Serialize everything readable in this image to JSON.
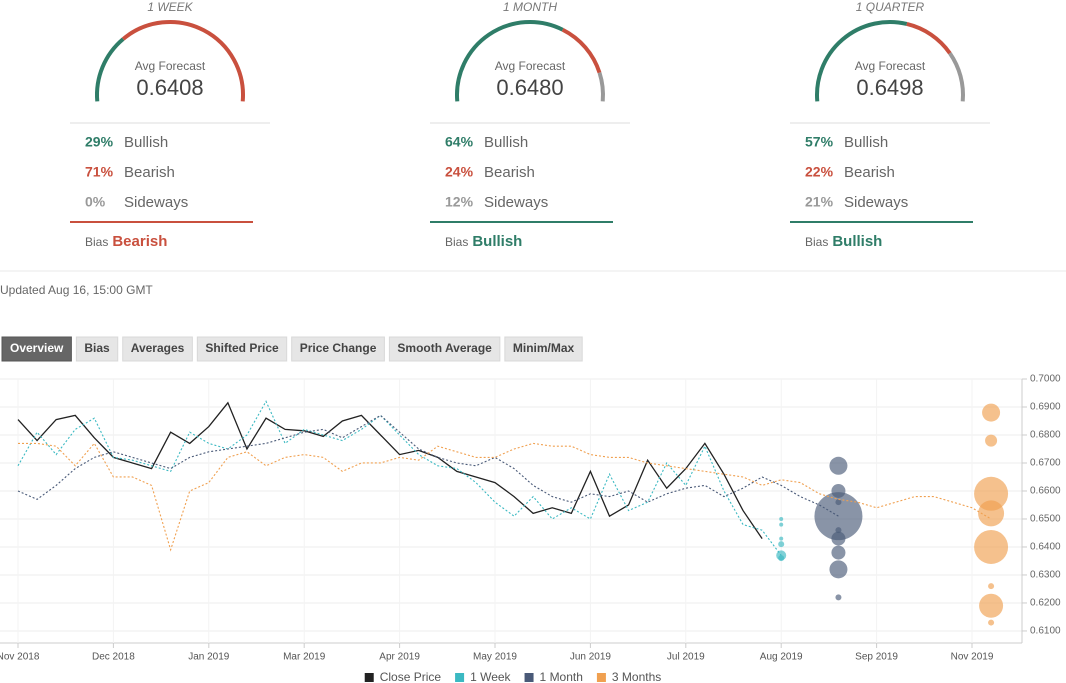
{
  "forecasts": [
    {
      "period": "1 WEEK",
      "avg_label": "Avg Forecast",
      "avg": "0.6408",
      "rows": [
        {
          "pct": {
            "value": 29,
            "label": "29%"
          },
          "name": "Bullish",
          "color": "#2f7d68"
        },
        {
          "pct": {
            "value": 71,
            "label": "71%"
          },
          "name": "Bearish",
          "color": "#c9503e"
        },
        {
          "pct": {
            "value": 0,
            "label": "0%"
          },
          "name": "Sideways",
          "color": "#999999"
        }
      ],
      "bias_label": "Bias",
      "bias": "Bearish",
      "bias_color": "#c9503e"
    },
    {
      "period": "1 MONTH",
      "avg_label": "Avg Forecast",
      "avg": "0.6480",
      "rows": [
        {
          "pct": {
            "value": 64,
            "label": "64%"
          },
          "name": "Bullish",
          "color": "#2f7d68"
        },
        {
          "pct": {
            "value": 24,
            "label": "24%"
          },
          "name": "Bearish",
          "color": "#c9503e"
        },
        {
          "pct": {
            "value": 12,
            "label": "12%"
          },
          "name": "Sideways",
          "color": "#999999"
        }
      ],
      "bias_label": "Bias",
      "bias": "Bullish",
      "bias_color": "#2f7d68"
    },
    {
      "period": "1 QUARTER",
      "avg_label": "Avg Forecast",
      "avg": "0.6498",
      "rows": [
        {
          "pct": {
            "value": 57,
            "label": "57%"
          },
          "name": "Bullish",
          "color": "#2f7d68"
        },
        {
          "pct": {
            "value": 22,
            "label": "22%"
          },
          "name": "Bearish",
          "color": "#c9503e"
        },
        {
          "pct": {
            "value": 21,
            "label": "21%"
          },
          "name": "Sideways",
          "color": "#999999"
        }
      ],
      "bias_label": "Bias",
      "bias": "Bullish",
      "bias_color": "#2f7d68"
    }
  ],
  "updated": "Updated Aug 16, 15:00 GMT",
  "tabs": [
    "Overview",
    "Bias",
    "Averages",
    "Shifted Price",
    "Price Change",
    "Smooth Average",
    "Minim/Max"
  ],
  "active_tab": 0,
  "chart_data": {
    "type": "line",
    "categories": [
      "Nov 2018",
      null,
      null,
      null,
      null,
      "Dec 2018",
      null,
      null,
      null,
      null,
      "Jan 2019",
      null,
      null,
      null,
      null,
      "Mar 2019",
      null,
      null,
      null,
      null,
      "Apr 2019",
      null,
      null,
      null,
      null,
      "May 2019",
      null,
      null,
      null,
      null,
      "Jun 2019",
      null,
      null,
      null,
      null,
      "Jul 2019",
      null,
      null,
      null,
      null,
      "Aug 2019",
      null,
      null,
      null,
      null,
      "Sep 2019",
      null,
      null,
      null,
      null,
      "Nov 2019",
      null,
      null
    ],
    "ylim": [
      0.6057,
      0.7
    ],
    "yticks": [
      {
        "value": 0.61,
        "label": "0.6100"
      },
      {
        "value": 0.62,
        "label": "0.6200"
      },
      {
        "value": 0.63,
        "label": "0.6300"
      },
      {
        "value": 0.64,
        "label": "0.6400"
      },
      {
        "value": 0.65,
        "label": "0.6500"
      },
      {
        "value": 0.66,
        "label": "0.6600"
      },
      {
        "value": 0.67,
        "label": "0.6700"
      },
      {
        "value": 0.68,
        "label": "0.6800"
      },
      {
        "value": 0.69,
        "label": "0.6900"
      },
      {
        "value": 0.7,
        "label": "0.7000"
      }
    ],
    "grid": true,
    "legend": "bottom",
    "series": [
      {
        "name": "Close Price",
        "color": "#222222",
        "style": "solid",
        "values": [
          0.6855,
          0.678,
          0.6855,
          0.687,
          0.679,
          0.672,
          0.67,
          0.668,
          0.681,
          0.677,
          0.683,
          0.6915,
          0.675,
          0.686,
          0.682,
          0.6815,
          0.6795,
          0.685,
          0.687,
          0.68,
          0.673,
          0.6745,
          0.672,
          0.667,
          0.665,
          0.663,
          0.658,
          0.652,
          0.654,
          0.652,
          0.667,
          0.651,
          0.655,
          0.671,
          0.661,
          0.668,
          0.677,
          0.666,
          0.653,
          0.643,
          null,
          null,
          null,
          null,
          null,
          null,
          null,
          null,
          null,
          null,
          null,
          null,
          null
        ]
      },
      {
        "name": "1 Week",
        "color": "#3bb9c2",
        "style": "dotted",
        "values": [
          0.669,
          0.681,
          0.673,
          0.682,
          0.686,
          0.672,
          0.671,
          0.669,
          0.667,
          0.681,
          0.677,
          0.675,
          0.68,
          0.692,
          0.677,
          0.682,
          0.68,
          0.678,
          0.682,
          0.687,
          0.68,
          0.673,
          0.669,
          0.668,
          0.663,
          0.656,
          0.651,
          0.658,
          0.65,
          0.654,
          0.65,
          0.666,
          0.653,
          0.656,
          0.67,
          0.662,
          0.676,
          0.66,
          0.648,
          0.646,
          0.637,
          null,
          null,
          null,
          null,
          null,
          null,
          null,
          null,
          null,
          null,
          null,
          null
        ],
        "forecast": [
          {
            "y": 0.65,
            "size": 2
          },
          {
            "y": 0.648,
            "size": 2
          },
          {
            "y": 0.643,
            "size": 2
          },
          {
            "y": 0.641,
            "size": 3
          },
          {
            "y": 0.637,
            "size": 5
          },
          {
            "y": 0.636,
            "size": 3
          }
        ]
      },
      {
        "name": "1 Month",
        "color": "#4a5a78",
        "style": "dotted",
        "values": [
          0.66,
          0.657,
          0.662,
          0.668,
          0.672,
          0.674,
          0.672,
          0.67,
          0.668,
          0.672,
          0.674,
          0.675,
          0.676,
          0.677,
          0.679,
          0.681,
          0.682,
          0.679,
          0.683,
          0.687,
          0.681,
          0.675,
          0.672,
          0.67,
          0.669,
          0.672,
          0.668,
          0.662,
          0.658,
          0.656,
          0.659,
          0.658,
          0.66,
          0.656,
          0.659,
          0.661,
          0.662,
          0.658,
          0.661,
          0.665,
          0.662,
          0.658,
          0.655,
          0.651,
          null,
          null,
          null,
          null,
          null,
          null,
          null,
          null,
          null
        ],
        "forecast": [
          {
            "y": 0.669,
            "size": 9
          },
          {
            "y": 0.66,
            "size": 7
          },
          {
            "y": 0.656,
            "size": 3
          },
          {
            "y": 0.651,
            "size": 24
          },
          {
            "y": 0.646,
            "size": 3
          },
          {
            "y": 0.643,
            "size": 7
          },
          {
            "y": 0.638,
            "size": 7
          },
          {
            "y": 0.632,
            "size": 9
          },
          {
            "y": 0.622,
            "size": 3
          }
        ]
      },
      {
        "name": "3 Months",
        "color": "#f0a050",
        "style": "dotted",
        "values": [
          0.677,
          0.677,
          0.676,
          0.669,
          0.677,
          0.665,
          0.665,
          0.662,
          0.639,
          0.66,
          0.663,
          0.672,
          0.674,
          0.669,
          0.672,
          0.673,
          0.672,
          0.667,
          0.67,
          0.67,
          0.672,
          0.671,
          0.676,
          0.674,
          0.672,
          0.672,
          0.675,
          0.677,
          0.676,
          0.676,
          0.673,
          0.672,
          0.672,
          0.67,
          0.669,
          0.668,
          0.667,
          0.666,
          0.665,
          0.662,
          0.664,
          0.663,
          0.659,
          0.657,
          0.656,
          0.654,
          0.656,
          0.658,
          0.658,
          0.656,
          0.654,
          0.65,
          null
        ],
        "forecast": [
          {
            "y": 0.688,
            "size": 9
          },
          {
            "y": 0.678,
            "size": 6
          },
          {
            "y": 0.659,
            "size": 17
          },
          {
            "y": 0.652,
            "size": 13
          },
          {
            "y": 0.64,
            "size": 17
          },
          {
            "y": 0.626,
            "size": 3
          },
          {
            "y": 0.619,
            "size": 12
          },
          {
            "y": 0.613,
            "size": 3
          }
        ]
      }
    ]
  }
}
